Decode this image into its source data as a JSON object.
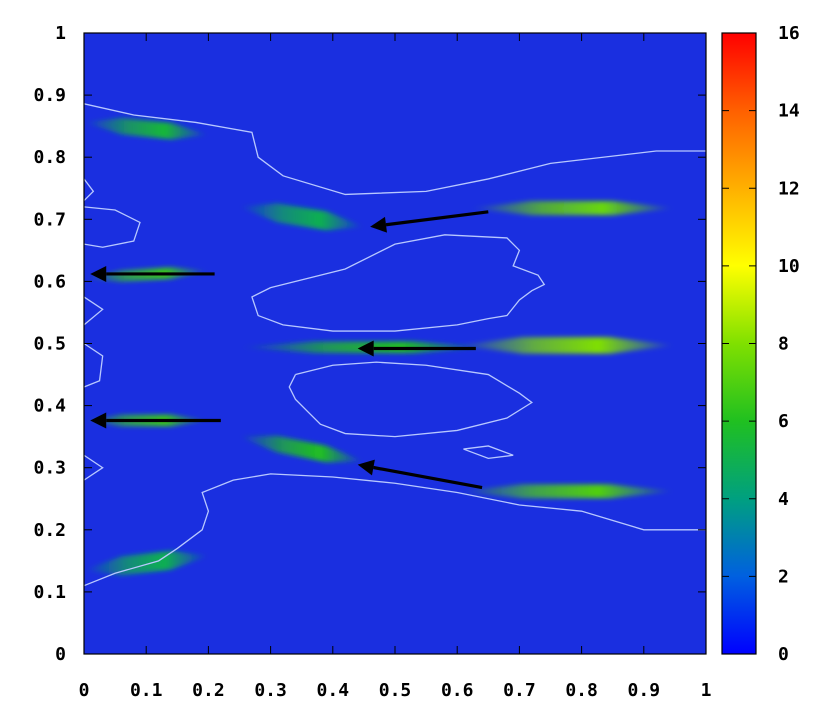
{
  "chart_data": {
    "type": "heatmap",
    "title": "",
    "xlabel": "",
    "ylabel": "",
    "xlim": [
      0,
      1
    ],
    "ylim": [
      0,
      1
    ],
    "x_ticks": [
      "0",
      "0.1",
      "0.2",
      "0.3",
      "0.4",
      "0.5",
      "0.6",
      "0.7",
      "0.8",
      "0.9",
      "1"
    ],
    "y_ticks": [
      "0",
      "0.1",
      "0.2",
      "0.3",
      "0.4",
      "0.5",
      "0.6",
      "0.7",
      "0.8",
      "0.9",
      "1"
    ],
    "colorbar": {
      "range": [
        0,
        16
      ],
      "ticks": [
        "0",
        "2",
        "4",
        "6",
        "8",
        "10",
        "12",
        "14",
        "16"
      ],
      "colors": [
        "#0000ff",
        "#0060e0",
        "#00a080",
        "#20c020",
        "#80e000",
        "#ffff00",
        "#ffb000",
        "#ff6000",
        "#ff0000"
      ]
    },
    "background_color": "#1a2fe0",
    "contour_color": "#b8c8ff",
    "streaks": [
      {
        "x": [
          0.0,
          0.2
        ],
        "y": [
          0.856,
          0.836
        ],
        "peak": 5.5,
        "half_width": 0.01
      },
      {
        "x": [
          0.0,
          0.2
        ],
        "y": [
          0.605,
          0.617
        ],
        "peak": 6.5,
        "half_width": 0.006
      },
      {
        "x": [
          0.0,
          0.2
        ],
        "y": [
          0.376,
          0.376
        ],
        "peak": 6.5,
        "half_width": 0.006
      },
      {
        "x": [
          0.0,
          0.2
        ],
        "y": [
          0.135,
          0.158
        ],
        "peak": 5.0,
        "half_width": 0.012
      },
      {
        "x": [
          0.25,
          0.45
        ],
        "y": [
          0.72,
          0.688
        ],
        "peak": 5.0,
        "half_width": 0.012
      },
      {
        "x": [
          0.62,
          0.95
        ],
        "y": [
          0.718,
          0.718
        ],
        "peak": 7.5,
        "half_width": 0.008
      },
      {
        "x": [
          0.25,
          0.65
        ],
        "y": [
          0.494,
          0.494
        ],
        "peak": 6.0,
        "half_width": 0.006
      },
      {
        "x": [
          0.6,
          0.95
        ],
        "y": [
          0.497,
          0.497
        ],
        "peak": 8.0,
        "half_width": 0.01
      },
      {
        "x": [
          0.25,
          0.45
        ],
        "y": [
          0.35,
          0.31
        ],
        "peak": 6.0,
        "half_width": 0.01
      },
      {
        "x": [
          0.6,
          0.95
        ],
        "y": [
          0.262,
          0.262
        ],
        "peak": 7.0,
        "half_width": 0.008
      }
    ],
    "contours": [
      [
        [
          0.0,
          0.886
        ],
        [
          0.08,
          0.868
        ],
        [
          0.18,
          0.856
        ],
        [
          0.27,
          0.84
        ],
        [
          0.28,
          0.8
        ],
        [
          0.32,
          0.77
        ],
        [
          0.42,
          0.74
        ],
        [
          0.55,
          0.745
        ],
        [
          0.65,
          0.765
        ],
        [
          0.75,
          0.79
        ],
        [
          0.92,
          0.81
        ],
        [
          1.0,
          0.81
        ]
      ],
      [
        [
          0.0,
          0.11
        ],
        [
          0.05,
          0.13
        ],
        [
          0.12,
          0.15
        ],
        [
          0.15,
          0.17
        ],
        [
          0.19,
          0.2
        ],
        [
          0.2,
          0.23
        ],
        [
          0.19,
          0.26
        ],
        [
          0.24,
          0.28
        ],
        [
          0.3,
          0.29
        ],
        [
          0.4,
          0.285
        ],
        [
          0.5,
          0.275
        ],
        [
          0.6,
          0.26
        ],
        [
          0.7,
          0.24
        ],
        [
          0.8,
          0.23
        ],
        [
          0.9,
          0.2
        ],
        [
          1.0,
          0.2
        ]
      ],
      [
        [
          0.0,
          0.72
        ],
        [
          0.05,
          0.715
        ],
        [
          0.09,
          0.695
        ],
        [
          0.08,
          0.665
        ],
        [
          0.03,
          0.655
        ],
        [
          0.0,
          0.66
        ]
      ],
      [
        [
          0.0,
          0.765
        ],
        [
          0.015,
          0.745
        ],
        [
          0.0,
          0.73
        ]
      ],
      [
        [
          0.0,
          0.575
        ],
        [
          0.03,
          0.555
        ],
        [
          0.0,
          0.53
        ]
      ],
      [
        [
          0.0,
          0.5
        ],
        [
          0.03,
          0.48
        ],
        [
          0.025,
          0.44
        ],
        [
          0.0,
          0.43
        ]
      ],
      [
        [
          0.0,
          0.32
        ],
        [
          0.03,
          0.3
        ],
        [
          0.0,
          0.28
        ]
      ],
      [
        [
          0.3,
          0.59
        ],
        [
          0.42,
          0.62
        ],
        [
          0.5,
          0.66
        ],
        [
          0.58,
          0.675
        ],
        [
          0.68,
          0.67
        ],
        [
          0.7,
          0.65
        ],
        [
          0.69,
          0.625
        ],
        [
          0.73,
          0.61
        ],
        [
          0.74,
          0.595
        ],
        [
          0.72,
          0.585
        ],
        [
          0.7,
          0.57
        ],
        [
          0.68,
          0.545
        ],
        [
          0.65,
          0.54
        ],
        [
          0.6,
          0.53
        ],
        [
          0.5,
          0.52
        ],
        [
          0.4,
          0.52
        ],
        [
          0.32,
          0.53
        ],
        [
          0.28,
          0.545
        ],
        [
          0.27,
          0.575
        ],
        [
          0.3,
          0.59
        ]
      ],
      [
        [
          0.34,
          0.45
        ],
        [
          0.4,
          0.465
        ],
        [
          0.47,
          0.47
        ],
        [
          0.55,
          0.465
        ],
        [
          0.65,
          0.45
        ],
        [
          0.7,
          0.42
        ],
        [
          0.72,
          0.405
        ],
        [
          0.68,
          0.38
        ],
        [
          0.6,
          0.36
        ],
        [
          0.5,
          0.35
        ],
        [
          0.42,
          0.355
        ],
        [
          0.38,
          0.37
        ],
        [
          0.36,
          0.39
        ],
        [
          0.34,
          0.41
        ],
        [
          0.33,
          0.43
        ],
        [
          0.34,
          0.45
        ]
      ],
      [
        [
          0.61,
          0.33
        ],
        [
          0.65,
          0.335
        ],
        [
          0.69,
          0.32
        ],
        [
          0.65,
          0.315
        ],
        [
          0.61,
          0.33
        ]
      ]
    ],
    "arrows": [
      {
        "from": [
          0.21,
          0.612
        ],
        "to": [
          0.01,
          0.612
        ]
      },
      {
        "from": [
          0.22,
          0.376
        ],
        "to": [
          0.01,
          0.376
        ]
      },
      {
        "from": [
          0.65,
          0.712
        ],
        "to": [
          0.46,
          0.688
        ]
      },
      {
        "from": [
          0.63,
          0.492
        ],
        "to": [
          0.44,
          0.492
        ]
      },
      {
        "from": [
          0.64,
          0.268
        ],
        "to": [
          0.44,
          0.305
        ]
      }
    ]
  }
}
